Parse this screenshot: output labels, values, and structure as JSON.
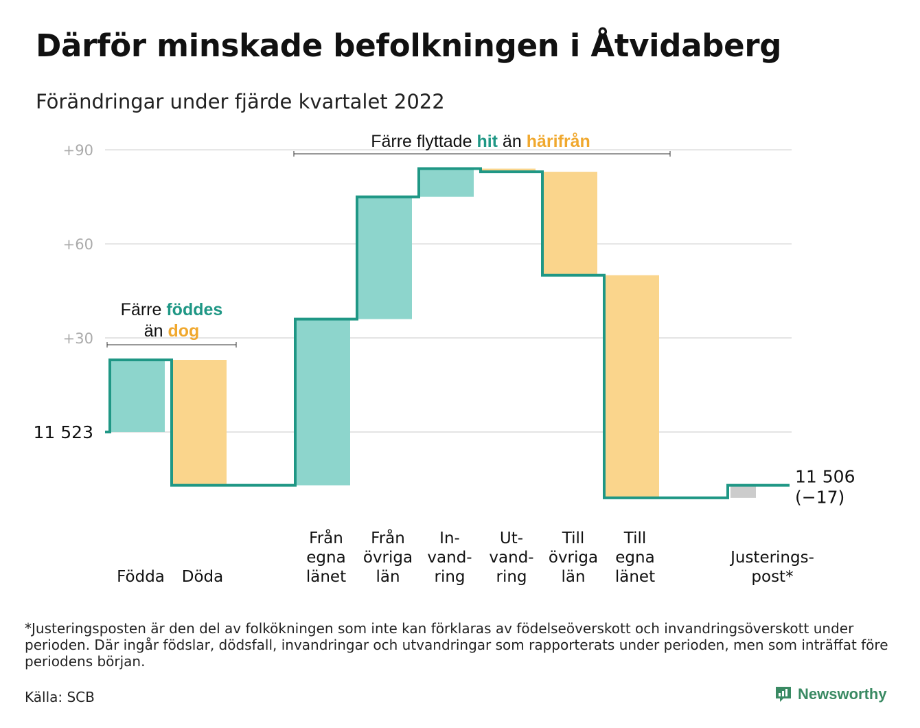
{
  "title": "Därför minskade befolkningen i Åtvidaberg",
  "subtitle": "Förändringar under fjärde kvartalet 2022",
  "colors": {
    "inflow": "#8dd5cc",
    "outflow": "#fad58c",
    "adjustment": "#cccccc",
    "line": "#1f9785",
    "accent_green": "#1f9785",
    "accent_orange": "#f0a82e",
    "grid": "#e4e4e4",
    "tick": "#aaaaaa"
  },
  "chart_data": {
    "type": "waterfall",
    "start_value": 11523,
    "start_label": "11 523",
    "end_label": "11 506",
    "end_change_label": "(−17)",
    "y_ticks": [
      {
        "value": 30,
        "label": "+30"
      },
      {
        "value": 60,
        "label": "+60"
      },
      {
        "value": 90,
        "label": "+90"
      }
    ],
    "ylim": [
      -23,
      93
    ],
    "steps": [
      {
        "label": [
          "Födda"
        ],
        "change": 23,
        "kind": "inflow"
      },
      {
        "label": [
          "Döda"
        ],
        "change": -40,
        "kind": "outflow"
      },
      {
        "label": [],
        "change": 0,
        "kind": "gap"
      },
      {
        "label": [
          "Från",
          "egna",
          "länet"
        ],
        "change": 53,
        "kind": "inflow"
      },
      {
        "label": [
          "Från",
          "övriga",
          "län"
        ],
        "change": 39,
        "kind": "inflow"
      },
      {
        "label": [
          "In-",
          "vand-",
          "ring"
        ],
        "change": 9,
        "kind": "inflow"
      },
      {
        "label": [
          "Ut-",
          "vand-",
          "ring"
        ],
        "change": -1,
        "kind": "outflow"
      },
      {
        "label": [
          "Till",
          "övriga",
          "län"
        ],
        "change": -33,
        "kind": "outflow"
      },
      {
        "label": [
          "Till",
          "egna",
          "länet"
        ],
        "change": -71,
        "kind": "outflow"
      },
      {
        "label": [],
        "change": 0,
        "kind": "gap"
      },
      {
        "label": [
          "Justerings-",
          "post*"
        ],
        "change": 4,
        "kind": "adjustment"
      }
    ],
    "annotations": [
      {
        "parts": [
          {
            "text": "Färre ",
            "style": "plain"
          },
          {
            "text": "föddes",
            "style": "green"
          }
        ],
        "parts2": [
          {
            "text": "än ",
            "style": "plain"
          },
          {
            "text": "dog",
            "style": "orange"
          }
        ]
      },
      {
        "parts": [
          {
            "text": "Färre flyttade ",
            "style": "plain"
          },
          {
            "text": "hit",
            "style": "green"
          },
          {
            "text": " än ",
            "style": "plain"
          },
          {
            "text": "härifrån",
            "style": "orange"
          }
        ]
      }
    ]
  },
  "footnote": "*Justeringsposten är den del av folkökningen som inte kan förklaras av födelseöverskott och invandringsöverskott under perioden. Där ingår födslar, dödsfall, invandringar och utvandringar som rapporterats under perioden, men som inträffat före periodens början.",
  "source": "Källa: SCB",
  "brand": {
    "name": "Newsworthy",
    "icon": "newsworthy-logo-icon"
  }
}
